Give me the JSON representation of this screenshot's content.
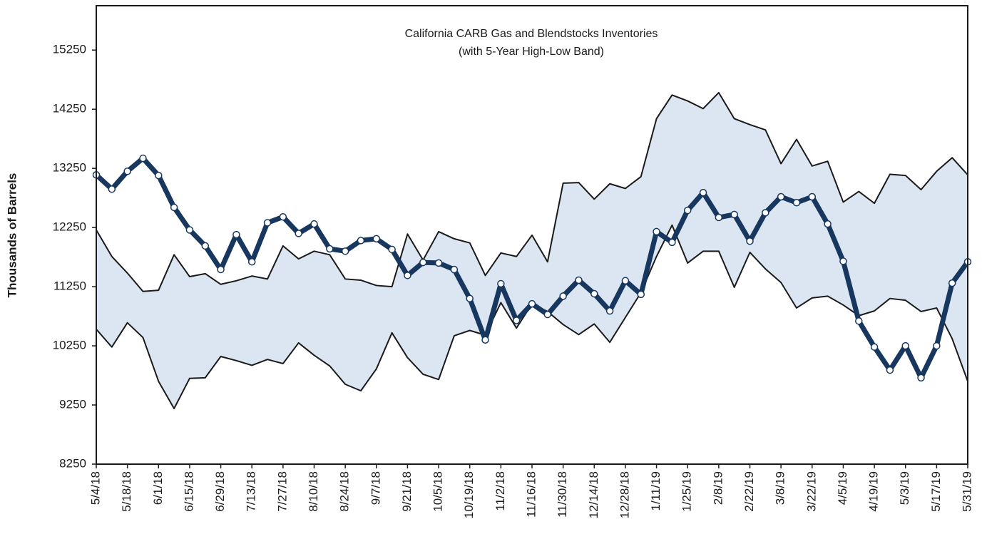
{
  "chart_data": {
    "type": "line",
    "title": "California CARB Gas and Blendstocks Inventories",
    "subtitle": "(with 5-Year High-Low Band)",
    "y_label": "Thousands of Barrels",
    "categories": [
      "5/4/18",
      null,
      "5/18/18",
      null,
      "6/1/18",
      null,
      "6/15/18",
      null,
      "6/29/18",
      null,
      "7/13/18",
      null,
      "7/27/18",
      null,
      "8/10/18",
      null,
      "8/24/18",
      null,
      "9/7/18",
      null,
      "9/21/18",
      null,
      "10/5/18",
      null,
      "10/19/18",
      null,
      "11/2/18",
      null,
      "11/16/18",
      null,
      "11/30/18",
      null,
      "12/14/18",
      null,
      "12/28/18",
      null,
      "1/11/19",
      null,
      "1/25/19",
      null,
      "2/8/19",
      null,
      "2/22/19",
      null,
      "3/8/19",
      null,
      "3/22/19",
      null,
      "4/5/19",
      null,
      "4/19/19",
      null,
      "5/3/19",
      null,
      "5/17/19",
      null,
      "5/31/19"
    ],
    "band_fill": "#dce6f2",
    "series": [
      {
        "color": "#1a1a1a",
        "line_width": 2,
        "values": [
          12210,
          11760,
          11480,
          11170,
          11190,
          11790,
          11420,
          11470,
          11290,
          11350,
          11430,
          11380,
          11940,
          11720,
          11850,
          11790,
          11380,
          11360,
          11270,
          11250,
          12140,
          11700,
          12180,
          12060,
          11990,
          11440,
          11820,
          11760,
          12120,
          11670,
          13000,
          13010,
          12730,
          12990,
          12910,
          13110,
          14090,
          14490,
          14390,
          14260,
          14530,
          14090,
          13990,
          13900,
          13330,
          13740,
          13290,
          13370,
          12680,
          12860,
          12660,
          13150,
          13130,
          12890,
          13200,
          13430,
          13140
        ]
      },
      {
        "color": "#1a1a1a",
        "line_width": 2,
        "values": [
          10530,
          10230,
          10640,
          10390,
          9650,
          9190,
          9700,
          9710,
          10070,
          10000,
          9920,
          10020,
          9950,
          10300,
          10090,
          9910,
          9600,
          9490,
          9860,
          10470,
          10050,
          9770,
          9680,
          10420,
          10510,
          10430,
          10980,
          10550,
          10960,
          10830,
          10610,
          10440,
          10620,
          10310,
          10730,
          11150,
          11760,
          12290,
          11650,
          11850,
          11850,
          11240,
          11830,
          11550,
          11320,
          10890,
          11060,
          11090,
          10940,
          10760,
          10840,
          11050,
          11020,
          10830,
          10890,
          10370,
          9650
        ]
      },
      {
        "color": "#17375e",
        "line_width": 7,
        "markers": true,
        "values": [
          13140,
          12900,
          13200,
          13420,
          13130,
          12590,
          12210,
          11940,
          11540,
          12130,
          11670,
          12330,
          12430,
          12150,
          12310,
          11890,
          11850,
          12030,
          12060,
          11880,
          11440,
          11660,
          11650,
          11540,
          11050,
          10350,
          11300,
          10680,
          10960,
          10780,
          11090,
          11360,
          11130,
          10840,
          11350,
          11120,
          12180,
          12000,
          12540,
          12840,
          12420,
          12470,
          12020,
          12500,
          12770,
          12670,
          12770,
          12310,
          11680,
          10670,
          10230,
          9840,
          10250,
          9710,
          10250,
          11310,
          11670
        ]
      }
    ],
    "ylim": [
      8250,
      16000
    ],
    "yticks": [
      8250,
      9250,
      10250,
      11250,
      12250,
      13250,
      14250,
      15250
    ]
  }
}
